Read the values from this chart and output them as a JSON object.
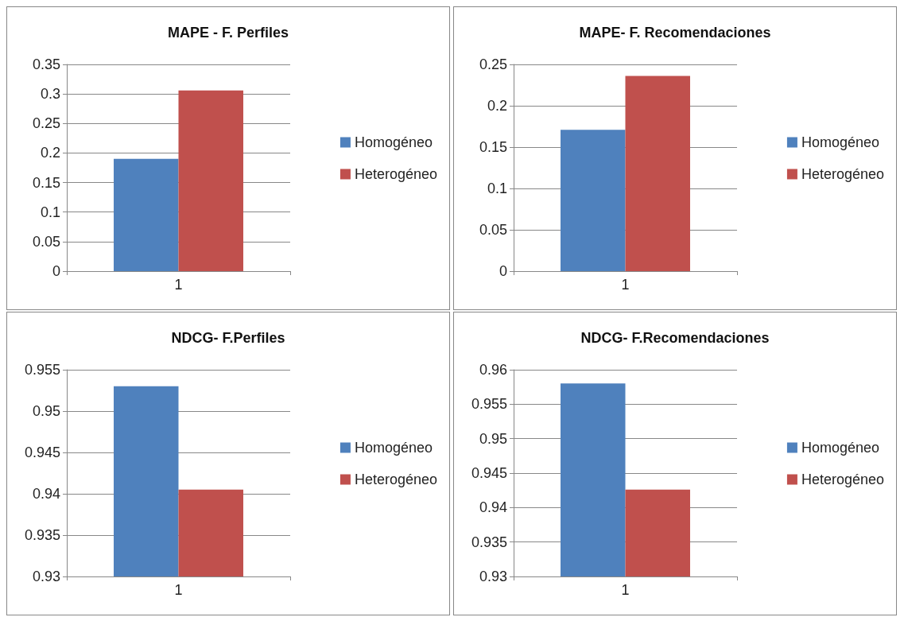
{
  "chart_data": [
    {
      "type": "bar",
      "title": "MAPE - F. Perfiles",
      "categories": [
        "1"
      ],
      "series": [
        {
          "name": "Homogéneo",
          "color": "#4f81bd",
          "values": [
            0.19
          ]
        },
        {
          "name": "Heterogéneo",
          "color": "#c0504d",
          "values": [
            0.306
          ]
        }
      ],
      "ylim": [
        0,
        0.35
      ],
      "yticks": [
        0,
        0.05,
        0.1,
        0.15,
        0.2,
        0.25,
        0.3,
        0.35
      ],
      "grid": "y",
      "legend": "right"
    },
    {
      "type": "bar",
      "title": "MAPE- F. Recomendaciones",
      "categories": [
        "1"
      ],
      "series": [
        {
          "name": "Homogéneo",
          "color": "#4f81bd",
          "values": [
            0.171
          ]
        },
        {
          "name": "Heterogéneo",
          "color": "#c0504d",
          "values": [
            0.236
          ]
        }
      ],
      "ylim": [
        0,
        0.25
      ],
      "yticks": [
        0,
        0.05,
        0.1,
        0.15,
        0.2,
        0.25
      ],
      "grid": "y",
      "legend": "right"
    },
    {
      "type": "bar",
      "title": "NDCG- F.Perfiles",
      "categories": [
        "1"
      ],
      "series": [
        {
          "name": "Homogéneo",
          "color": "#4f81bd",
          "values": [
            0.953
          ]
        },
        {
          "name": "Heterogéneo",
          "color": "#c0504d",
          "values": [
            0.9405
          ]
        }
      ],
      "ylim": [
        0.93,
        0.955
      ],
      "yticks": [
        0.93,
        0.935,
        0.94,
        0.945,
        0.95,
        0.955
      ],
      "grid": "y",
      "legend": "right"
    },
    {
      "type": "bar",
      "title": "NDCG- F.Recomendaciones",
      "categories": [
        "1"
      ],
      "series": [
        {
          "name": "Homogéneo",
          "color": "#4f81bd",
          "values": [
            0.958
          ]
        },
        {
          "name": "Heterogéneo",
          "color": "#c0504d",
          "values": [
            0.9426
          ]
        }
      ],
      "ylim": [
        0.93,
        0.96
      ],
      "yticks": [
        0.93,
        0.935,
        0.94,
        0.945,
        0.95,
        0.955,
        0.96
      ],
      "grid": "y",
      "legend": "right"
    }
  ]
}
